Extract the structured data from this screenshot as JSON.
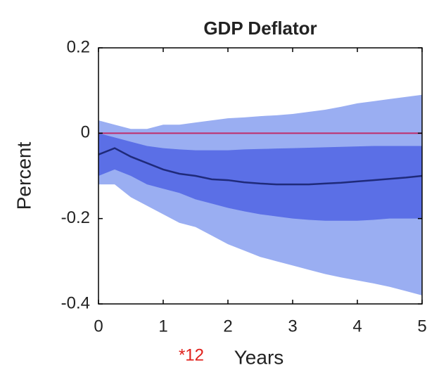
{
  "chart_data": {
    "type": "band_line",
    "title": "GDP Deflator",
    "xlabel": "Years",
    "ylabel": "Percent",
    "annotation": {
      "text": "*12",
      "color": "#e0201b"
    },
    "x": [
      0,
      0.25,
      0.5,
      0.75,
      1,
      1.25,
      1.5,
      1.75,
      2,
      2.25,
      2.5,
      2.75,
      3,
      3.25,
      3.5,
      3.75,
      4,
      4.25,
      4.5,
      4.75,
      5
    ],
    "bands": [
      {
        "color": "#9aaef2",
        "upper": [
          0.03,
          0.02,
          0.01,
          0.01,
          0.02,
          0.02,
          0.025,
          0.03,
          0.035,
          0.037,
          0.04,
          0.042,
          0.045,
          0.05,
          0.055,
          0.062,
          0.07,
          0.075,
          0.08,
          0.085,
          0.09
        ],
        "lower": [
          -0.12,
          -0.12,
          -0.15,
          -0.17,
          -0.19,
          -0.21,
          -0.22,
          -0.24,
          -0.26,
          -0.275,
          -0.29,
          -0.3,
          -0.31,
          -0.32,
          -0.33,
          -0.338,
          -0.345,
          -0.352,
          -0.36,
          -0.37,
          -0.38
        ]
      },
      {
        "color": "#5b6fe6",
        "upper": [
          0,
          -0.01,
          -0.02,
          -0.03,
          -0.035,
          -0.038,
          -0.04,
          -0.04,
          -0.04,
          -0.038,
          -0.037,
          -0.036,
          -0.035,
          -0.034,
          -0.033,
          -0.032,
          -0.031,
          -0.03,
          -0.03,
          -0.03,
          -0.03
        ],
        "lower": [
          -0.1,
          -0.085,
          -0.1,
          -0.12,
          -0.13,
          -0.14,
          -0.155,
          -0.165,
          -0.175,
          -0.183,
          -0.19,
          -0.195,
          -0.2,
          -0.203,
          -0.205,
          -0.205,
          -0.205,
          -0.203,
          -0.2,
          -0.2,
          -0.2
        ]
      }
    ],
    "series": [
      {
        "color": "#1f2a7a",
        "values": [
          -0.05,
          -0.035,
          -0.055,
          -0.07,
          -0.085,
          -0.095,
          -0.1,
          -0.108,
          -0.11,
          -0.115,
          -0.118,
          -0.12,
          -0.12,
          -0.12,
          -0.118,
          -0.116,
          -0.113,
          -0.11,
          -0.107,
          -0.104,
          -0.1
        ]
      }
    ],
    "reference_line": {
      "value": 0,
      "color": "#c02c6a"
    },
    "xlim": [
      0,
      5
    ],
    "xticks": [
      0,
      1,
      2,
      3,
      4,
      5
    ],
    "ylim": [
      -0.4,
      0.2
    ],
    "yticks": [
      -0.4,
      -0.2,
      0,
      0.2
    ]
  }
}
